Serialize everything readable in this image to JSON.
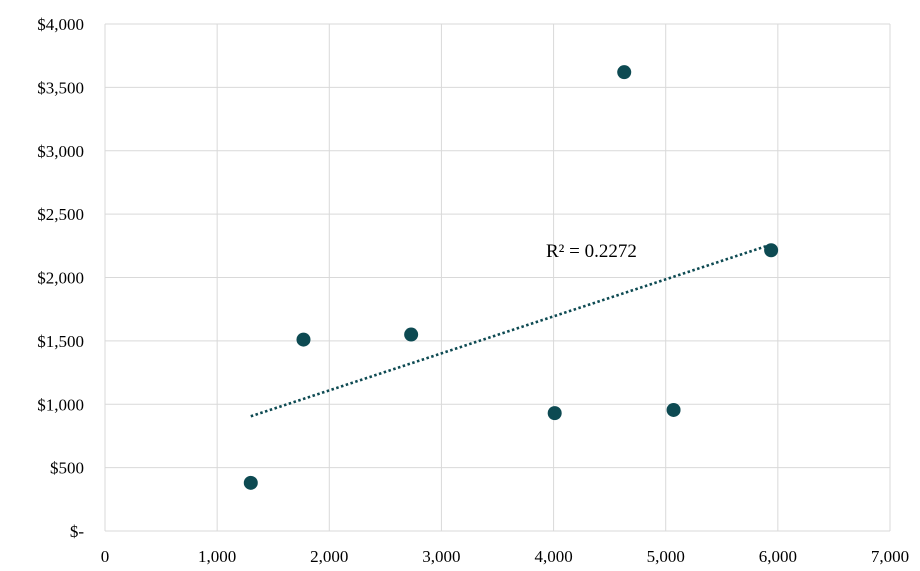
{
  "chart_data": {
    "type": "scatter",
    "title": "",
    "xlabel": "",
    "ylabel": "",
    "xlim": [
      0,
      7000
    ],
    "ylim": [
      0,
      4000
    ],
    "x_ticks": [
      0,
      1000,
      2000,
      3000,
      4000,
      5000,
      6000,
      7000
    ],
    "x_tick_labels": [
      "0",
      "1,000",
      "2,000",
      "3,000",
      "4,000",
      "5,000",
      "6,000",
      "7,000"
    ],
    "y_ticks": [
      0,
      500,
      1000,
      1500,
      2000,
      2500,
      3000,
      3500,
      4000
    ],
    "y_tick_labels": [
      "$-",
      "$500",
      "$1,000",
      "$1,500",
      "$2,000",
      "$2,500",
      "$3,000",
      "$3,500",
      "$4,000"
    ],
    "grid": true,
    "series": [
      {
        "points": [
          {
            "x": 1300,
            "y": 380
          },
          {
            "x": 1770,
            "y": 1510
          },
          {
            "x": 2730,
            "y": 1550
          },
          {
            "x": 4010,
            "y": 930
          },
          {
            "x": 4630,
            "y": 3620
          },
          {
            "x": 5070,
            "y": 955
          },
          {
            "x": 5940,
            "y": 2215
          }
        ],
        "color": "#0d4a52"
      }
    ],
    "trendline": {
      "type": "linear",
      "style": "dotted",
      "color": "#0d4a52",
      "x_range": [
        1300,
        5940
      ],
      "y_range": [
        905,
        2260
      ],
      "r_squared_label": "R² = 0.2272"
    }
  }
}
